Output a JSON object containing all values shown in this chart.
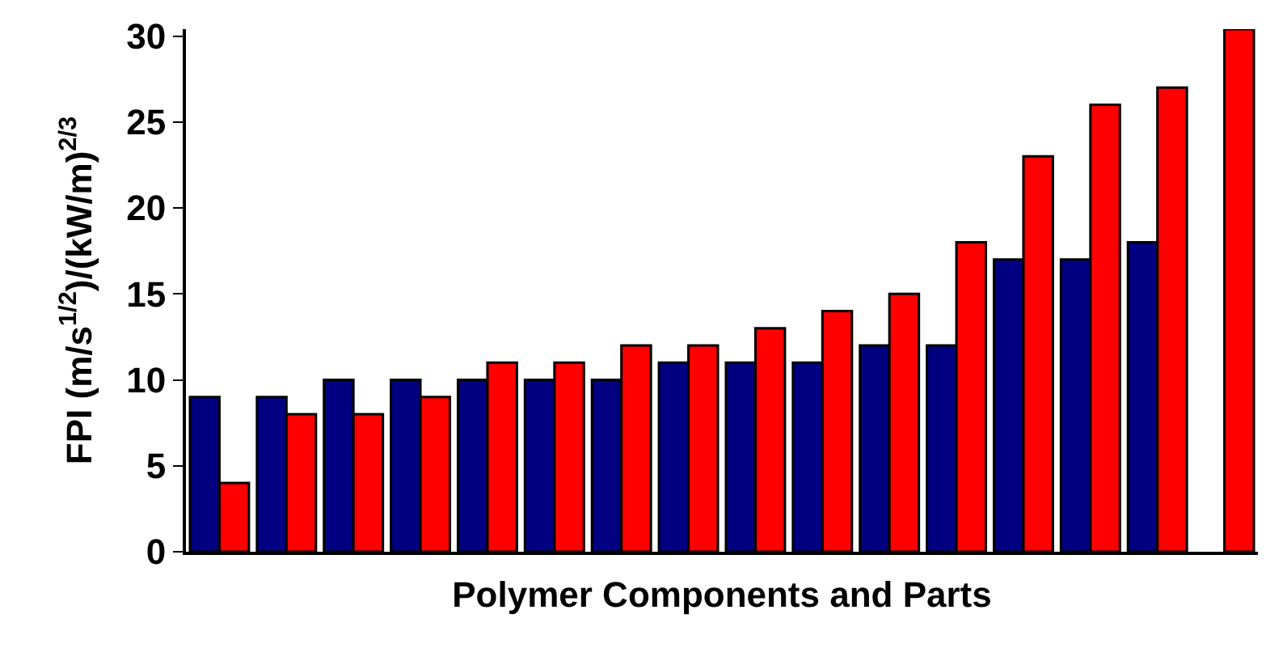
{
  "chart_data": {
    "type": "bar",
    "xlabel": "Polymer Components and Parts",
    "ylabel": "FPI (m/s$^{1/2}$)/(kW/m)$^{2/3}$",
    "categories": [
      null,
      null,
      null,
      null,
      null,
      null,
      null,
      null,
      null,
      null,
      null,
      null,
      null,
      null,
      null,
      null
    ],
    "series": [
      {
        "color": "#000080",
        "values": [
          9,
          9,
          10,
          10,
          10,
          10,
          10,
          11,
          11,
          11,
          12,
          12,
          17,
          17,
          18,
          null
        ]
      },
      {
        "color": "#ff0000",
        "values": [
          4,
          8,
          8,
          9,
          11,
          11,
          12,
          12,
          13,
          14,
          15,
          18,
          23,
          26,
          27,
          30.4
        ]
      }
    ],
    "ylim": [
      0,
      30.4
    ],
    "yticks": [
      0,
      5,
      10,
      15,
      20,
      25,
      30
    ]
  }
}
